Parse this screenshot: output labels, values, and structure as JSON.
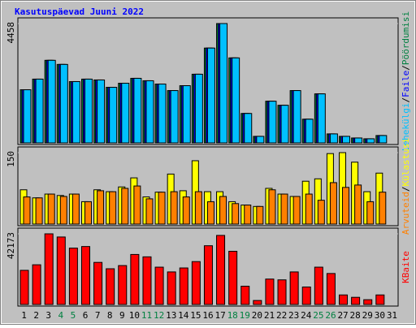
{
  "title": "Kasutuspäevad Juuni 2022",
  "legend_separator": "/",
  "chart_data": [
    {
      "type": "bar",
      "ylim": [
        0,
        4458
      ],
      "yticks": [
        4458
      ],
      "series": [
        {
          "name": "Pöördumisi",
          "color": "#008040",
          "values": [
            1985,
            2382,
            3084,
            2931,
            2290,
            2382,
            2351,
            2076,
            2229,
            2412,
            2321,
            2198,
            1954,
            2137,
            2565,
            3542,
            4458,
            3175,
            1099,
            244,
            1557,
            1405,
            1954,
            885,
            1832,
            336,
            244,
            183,
            153,
            275,
            null
          ]
        },
        {
          "name": "Faile",
          "color": "#0000ff",
          "values": [
            1985,
            2382,
            3084,
            2931,
            2290,
            2382,
            2351,
            2076,
            2229,
            2412,
            2321,
            2198,
            1954,
            2137,
            2565,
            3542,
            4458,
            3175,
            1099,
            244,
            1557,
            1405,
            1954,
            885,
            1832,
            336,
            244,
            183,
            153,
            275,
            null
          ]
        },
        {
          "name": "Lehekülgi",
          "color": "#00c0ff",
          "values": [
            1985,
            2382,
            3084,
            2931,
            2290,
            2382,
            2351,
            2076,
            2229,
            2412,
            2321,
            2198,
            1954,
            2137,
            2565,
            3542,
            4458,
            3175,
            1099,
            244,
            1557,
            1405,
            1954,
            885,
            1832,
            336,
            244,
            183,
            153,
            275,
            null
          ]
        }
      ]
    },
    {
      "type": "bar",
      "ylim": [
        0,
        150
      ],
      "yticks": [
        150
      ],
      "series": [
        {
          "name": "Külastusi",
          "color": "#ffff00",
          "values": [
            72,
            55,
            63,
            60,
            63,
            47,
            72,
            68,
            78,
            97,
            57,
            67,
            105,
            70,
            133,
            68,
            68,
            47,
            40,
            37,
            75,
            63,
            58,
            90,
            95,
            148,
            150,
            130,
            68,
            107,
            null
          ]
        },
        {
          "name": "Arvuteid",
          "color": "#ff8000",
          "values": [
            57,
            55,
            63,
            58,
            63,
            47,
            70,
            68,
            75,
            80,
            53,
            67,
            68,
            57,
            68,
            47,
            58,
            43,
            40,
            37,
            72,
            63,
            58,
            63,
            50,
            87,
            77,
            82,
            47,
            67,
            null
          ]
        }
      ]
    },
    {
      "type": "bar",
      "ylim": [
        0,
        42173
      ],
      "yticks": [
        42173
      ],
      "categories": [
        "1",
        "2",
        "3",
        "4",
        "5",
        "6",
        "7",
        "8",
        "9",
        "10",
        "11",
        "12",
        "13",
        "14",
        "15",
        "16",
        "17",
        "18",
        "19",
        "20",
        "21",
        "22",
        "23",
        "24",
        "25",
        "26",
        "27",
        "28",
        "29",
        "30",
        "31"
      ],
      "category_colors": [
        "#000000",
        "#000000",
        "#000000",
        "#008040",
        "#008040",
        "#000000",
        "#000000",
        "#000000",
        "#000000",
        "#000000",
        "#008040",
        "#008040",
        "#000000",
        "#000000",
        "#000000",
        "#000000",
        "#000000",
        "#008040",
        "#008040",
        "#000000",
        "#000000",
        "#000000",
        "#000000",
        "#000000",
        "#008040",
        "#008040",
        "#000000",
        "#000000",
        "#000000",
        "#000000",
        "#000000"
      ],
      "series": [
        {
          "name": "KBaite",
          "color": "#ff0000",
          "values": [
            20375,
            23693,
            42173,
            40277,
            33643,
            34591,
            25114,
            21323,
            23219,
            29853,
            28431,
            22271,
            19428,
            21797,
            25588,
            35065,
            41225,
            31748,
            10899,
            2369,
            15163,
            14689,
            19428,
            10425,
            22271,
            18480,
            5686,
            4265,
            2843,
            5686,
            null
          ]
        }
      ]
    }
  ]
}
